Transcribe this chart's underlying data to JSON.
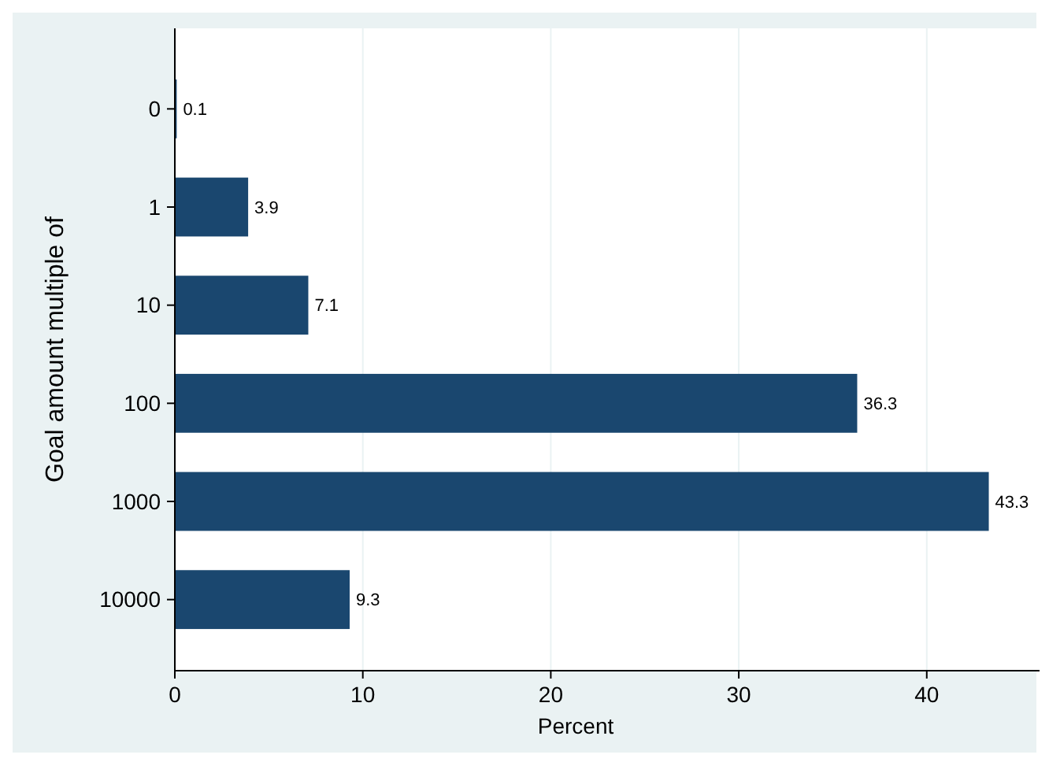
{
  "chart_data": {
    "type": "bar",
    "orientation": "horizontal",
    "xlabel": "Percent",
    "ylabel": "Goal amount multiple of",
    "categories": [
      "0",
      "1",
      "10",
      "100",
      "1000",
      "10000"
    ],
    "values": [
      0.1,
      3.9,
      7.1,
      36.3,
      43.3,
      9.3
    ],
    "color": "#1a476f",
    "xlim": [
      0,
      46
    ],
    "xticks": [
      0,
      10,
      20,
      30,
      40
    ],
    "grid": "x",
    "data_labels": true
  }
}
